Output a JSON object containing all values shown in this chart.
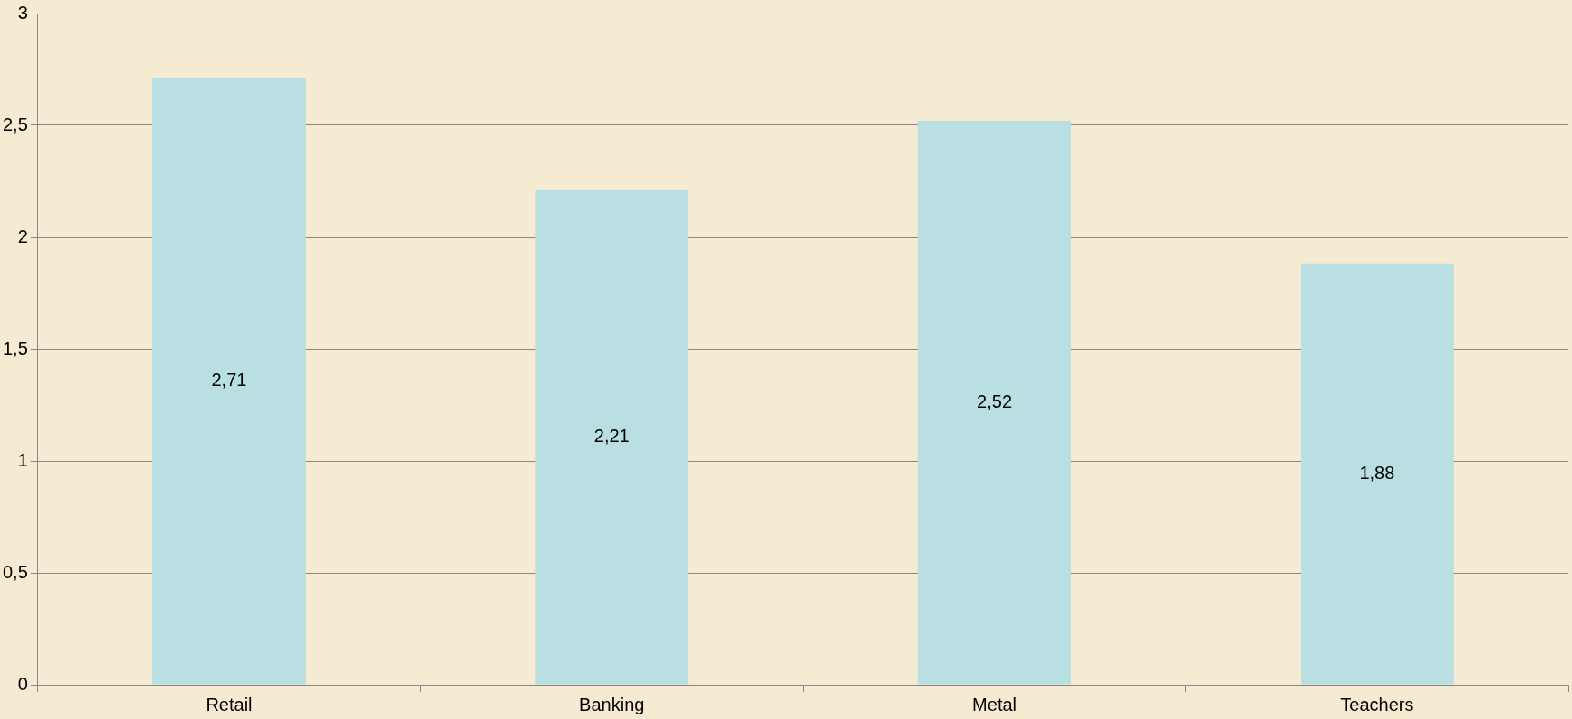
{
  "chart_data": {
    "type": "bar",
    "categories": [
      "Retail",
      "Banking",
      "Metal",
      "Teachers"
    ],
    "values": [
      2.71,
      2.21,
      2.52,
      1.88
    ],
    "color": "#b9dfe3",
    "value_labels": [
      "2,71",
      "2,21",
      "2,52",
      "1,88"
    ],
    "ylim": [
      0,
      3
    ],
    "yticks": [
      0,
      {
        "value": 0.5,
        "label": "0,5"
      },
      1,
      {
        "value": 1.5,
        "label": "1,5"
      },
      2,
      {
        "value": 2.5,
        "label": "2,5"
      },
      3
    ],
    "grid": "y"
  }
}
